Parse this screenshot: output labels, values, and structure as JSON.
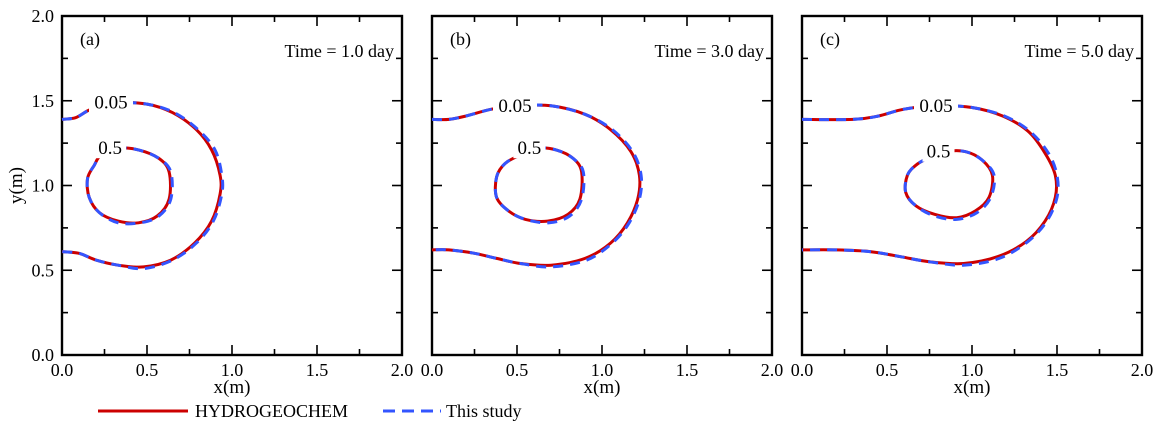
{
  "chart_data": [
    {
      "type": "line",
      "panel": "(a)",
      "annotation": "Time = 1.0 day",
      "xlabel": "x(m)",
      "ylabel": "y(m)",
      "xlim": [
        0,
        2
      ],
      "ylim": [
        0,
        2
      ],
      "xticks": [
        "0.0",
        "0.5",
        "1.0",
        "1.5",
        "2.0"
      ],
      "yticks": [
        "0.0",
        "0.5",
        "1.0",
        "1.5",
        "2.0"
      ],
      "contour_labels": [
        "0.05",
        "0.5"
      ],
      "series": [
        {
          "name": "HYDROGEOCHEM",
          "inner": [
            [
              0.23,
              1.18
            ],
            [
              0.33,
              1.22
            ],
            [
              0.45,
              1.21
            ],
            [
              0.57,
              1.16
            ],
            [
              0.63,
              1.08
            ],
            [
              0.63,
              0.92
            ],
            [
              0.56,
              0.82
            ],
            [
              0.45,
              0.78
            ],
            [
              0.33,
              0.79
            ],
            [
              0.22,
              0.84
            ],
            [
              0.16,
              0.93
            ],
            [
              0.15,
              1.04
            ],
            [
              0.19,
              1.12
            ]
          ],
          "outer": [
            [
              0,
              1.39
            ],
            [
              0.08,
              1.4
            ],
            [
              0.15,
              1.44
            ],
            [
              0.22,
              1.47
            ],
            [
              0.3,
              1.49
            ],
            [
              0.5,
              1.48
            ],
            [
              0.65,
              1.43
            ],
            [
              0.79,
              1.33
            ],
            [
              0.88,
              1.21
            ],
            [
              0.93,
              1.06
            ],
            [
              0.93,
              0.95
            ],
            [
              0.88,
              0.79
            ],
            [
              0.78,
              0.66
            ],
            [
              0.64,
              0.56
            ],
            [
              0.48,
              0.52
            ],
            [
              0.33,
              0.53
            ],
            [
              0.2,
              0.56
            ],
            [
              0.1,
              0.6
            ],
            [
              0,
              0.61
            ]
          ]
        },
        {
          "name": "This study",
          "inner": [
            [
              0.23,
              1.18
            ],
            [
              0.33,
              1.22
            ],
            [
              0.45,
              1.21
            ],
            [
              0.57,
              1.16
            ],
            [
              0.64,
              1.08
            ],
            [
              0.64,
              0.92
            ],
            [
              0.57,
              0.82
            ],
            [
              0.46,
              0.78
            ],
            [
              0.33,
              0.78
            ],
            [
              0.22,
              0.84
            ],
            [
              0.16,
              0.93
            ],
            [
              0.15,
              1.04
            ],
            [
              0.19,
              1.12
            ]
          ],
          "outer": [
            [
              0,
              1.39
            ],
            [
              0.08,
              1.4
            ],
            [
              0.15,
              1.44
            ],
            [
              0.22,
              1.47
            ],
            [
              0.3,
              1.49
            ],
            [
              0.5,
              1.48
            ],
            [
              0.66,
              1.43
            ],
            [
              0.8,
              1.33
            ],
            [
              0.9,
              1.21
            ],
            [
              0.94,
              1.06
            ],
            [
              0.94,
              0.95
            ],
            [
              0.89,
              0.79
            ],
            [
              0.79,
              0.66
            ],
            [
              0.65,
              0.56
            ],
            [
              0.48,
              0.51
            ],
            [
              0.33,
              0.53
            ],
            [
              0.2,
              0.56
            ],
            [
              0.1,
              0.6
            ],
            [
              0,
              0.61
            ]
          ]
        }
      ]
    },
    {
      "type": "line",
      "panel": "(b)",
      "annotation": "Time = 3.0 day",
      "xlabel": "x(m)",
      "ylabel": "",
      "xlim": [
        0,
        2
      ],
      "ylim": [
        0,
        2
      ],
      "xticks": [
        "0.0",
        "0.5",
        "1.0",
        "1.5",
        "2.0"
      ],
      "yticks": [],
      "contour_labels": [
        "0.05",
        "0.5"
      ],
      "series": [
        {
          "name": "HYDROGEOCHEM",
          "inner": [
            [
              0.52,
              1.18
            ],
            [
              0.62,
              1.22
            ],
            [
              0.73,
              1.21
            ],
            [
              0.83,
              1.16
            ],
            [
              0.88,
              1.08
            ],
            [
              0.87,
              0.92
            ],
            [
              0.8,
              0.83
            ],
            [
              0.68,
              0.79
            ],
            [
              0.55,
              0.8
            ],
            [
              0.45,
              0.85
            ],
            [
              0.38,
              0.93
            ],
            [
              0.38,
              1.05
            ],
            [
              0.43,
              1.13
            ]
          ],
          "outer": [
            [
              0,
              1.39
            ],
            [
              0.1,
              1.39
            ],
            [
              0.2,
              1.41
            ],
            [
              0.35,
              1.45
            ],
            [
              0.5,
              1.47
            ],
            [
              0.7,
              1.47
            ],
            [
              0.9,
              1.42
            ],
            [
              1.05,
              1.33
            ],
            [
              1.17,
              1.2
            ],
            [
              1.22,
              1.06
            ],
            [
              1.21,
              0.92
            ],
            [
              1.15,
              0.78
            ],
            [
              1.05,
              0.66
            ],
            [
              0.9,
              0.57
            ],
            [
              0.7,
              0.53
            ],
            [
              0.52,
              0.54
            ],
            [
              0.38,
              0.57
            ],
            [
              0.25,
              0.6
            ],
            [
              0.1,
              0.62
            ],
            [
              0,
              0.62
            ]
          ]
        },
        {
          "name": "This study",
          "inner": [
            [
              0.52,
              1.18
            ],
            [
              0.62,
              1.22
            ],
            [
              0.73,
              1.21
            ],
            [
              0.83,
              1.16
            ],
            [
              0.89,
              1.08
            ],
            [
              0.88,
              0.92
            ],
            [
              0.81,
              0.82
            ],
            [
              0.69,
              0.78
            ],
            [
              0.55,
              0.8
            ],
            [
              0.45,
              0.85
            ],
            [
              0.38,
              0.93
            ],
            [
              0.38,
              1.05
            ],
            [
              0.43,
              1.13
            ]
          ],
          "outer": [
            [
              0,
              1.39
            ],
            [
              0.1,
              1.39
            ],
            [
              0.2,
              1.41
            ],
            [
              0.35,
              1.45
            ],
            [
              0.5,
              1.47
            ],
            [
              0.7,
              1.47
            ],
            [
              0.9,
              1.42
            ],
            [
              1.06,
              1.33
            ],
            [
              1.18,
              1.2
            ],
            [
              1.23,
              1.06
            ],
            [
              1.22,
              0.92
            ],
            [
              1.16,
              0.78
            ],
            [
              1.06,
              0.66
            ],
            [
              0.91,
              0.56
            ],
            [
              0.7,
              0.52
            ],
            [
              0.52,
              0.54
            ],
            [
              0.38,
              0.57
            ],
            [
              0.25,
              0.6
            ],
            [
              0.1,
              0.62
            ],
            [
              0,
              0.62
            ]
          ]
        }
      ]
    },
    {
      "type": "line",
      "panel": "(c)",
      "annotation": "Time = 5.0 day",
      "xlabel": "x(m)",
      "ylabel": "",
      "xlim": [
        0,
        2
      ],
      "ylim": [
        0,
        2
      ],
      "xticks": [
        "0.0",
        "0.5",
        "1.0",
        "1.5",
        "2.0"
      ],
      "yticks": [],
      "contour_labels": [
        "0.05",
        "0.5"
      ],
      "series": [
        {
          "name": "HYDROGEOCHEM",
          "inner": [
            [
              0.74,
              1.16
            ],
            [
              0.85,
              1.2
            ],
            [
              0.96,
              1.2
            ],
            [
              1.06,
              1.15
            ],
            [
              1.12,
              1.06
            ],
            [
              1.1,
              0.93
            ],
            [
              1.02,
              0.85
            ],
            [
              0.91,
              0.81
            ],
            [
              0.78,
              0.83
            ],
            [
              0.67,
              0.88
            ],
            [
              0.61,
              0.96
            ],
            [
              0.62,
              1.06
            ],
            [
              0.67,
              1.12
            ]
          ],
          "outer": [
            [
              0,
              1.39
            ],
            [
              0.3,
              1.39
            ],
            [
              0.45,
              1.41
            ],
            [
              0.6,
              1.45
            ],
            [
              0.8,
              1.47
            ],
            [
              1.0,
              1.46
            ],
            [
              1.18,
              1.41
            ],
            [
              1.33,
              1.32
            ],
            [
              1.43,
              1.19
            ],
            [
              1.49,
              1.06
            ],
            [
              1.49,
              0.93
            ],
            [
              1.43,
              0.79
            ],
            [
              1.32,
              0.67
            ],
            [
              1.15,
              0.58
            ],
            [
              0.95,
              0.54
            ],
            [
              0.75,
              0.55
            ],
            [
              0.58,
              0.58
            ],
            [
              0.4,
              0.61
            ],
            [
              0.2,
              0.62
            ],
            [
              0,
              0.62
            ]
          ]
        },
        {
          "name": "This study",
          "inner": [
            [
              0.74,
              1.16
            ],
            [
              0.85,
              1.2
            ],
            [
              0.96,
              1.2
            ],
            [
              1.06,
              1.15
            ],
            [
              1.13,
              1.06
            ],
            [
              1.11,
              0.93
            ],
            [
              1.03,
              0.84
            ],
            [
              0.91,
              0.8
            ],
            [
              0.78,
              0.82
            ],
            [
              0.67,
              0.88
            ],
            [
              0.61,
              0.96
            ],
            [
              0.62,
              1.06
            ],
            [
              0.67,
              1.12
            ]
          ],
          "outer": [
            [
              0,
              1.39
            ],
            [
              0.3,
              1.39
            ],
            [
              0.45,
              1.41
            ],
            [
              0.6,
              1.45
            ],
            [
              0.8,
              1.47
            ],
            [
              1.0,
              1.46
            ],
            [
              1.19,
              1.41
            ],
            [
              1.34,
              1.32
            ],
            [
              1.45,
              1.19
            ],
            [
              1.5,
              1.06
            ],
            [
              1.5,
              0.93
            ],
            [
              1.44,
              0.79
            ],
            [
              1.33,
              0.67
            ],
            [
              1.16,
              0.57
            ],
            [
              0.95,
              0.53
            ],
            [
              0.75,
              0.55
            ],
            [
              0.58,
              0.58
            ],
            [
              0.4,
              0.61
            ],
            [
              0.2,
              0.62
            ],
            [
              0,
              0.62
            ]
          ]
        }
      ]
    }
  ],
  "legend": {
    "items": [
      {
        "label": "HYDROGEOCHEM",
        "color": "#cc0000",
        "style": "solid"
      },
      {
        "label": "This study",
        "color": "#3355ff",
        "style": "dashed"
      }
    ]
  }
}
